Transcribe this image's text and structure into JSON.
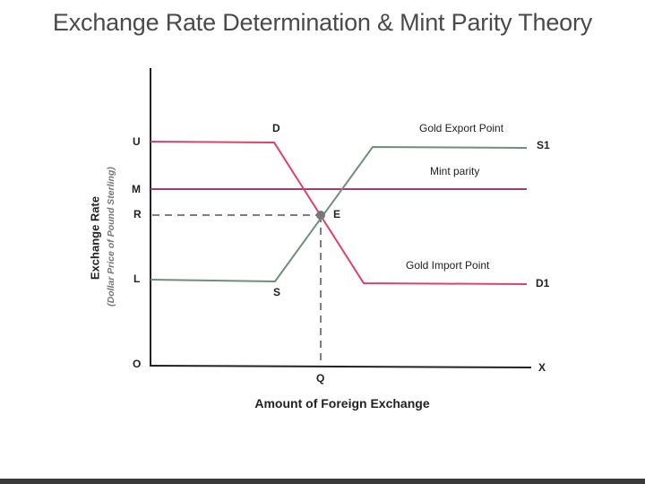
{
  "title": "Exchange Rate Determination & Mint Parity Theory",
  "axes": {
    "ylabel": "Exchange Rate",
    "ysublabel": "(Dollar Price of Pound Sterling)",
    "xlabel": "Amount of Foreign Exchange"
  },
  "point_labels": {
    "U": "U",
    "M": "M",
    "R": "R",
    "L": "L",
    "O": "O",
    "X": "X",
    "Q": "Q",
    "D": "D",
    "S": "S",
    "E": "E",
    "S1": "S1",
    "D1": "D1"
  },
  "annotations": {
    "gold_export": "Gold Export Point",
    "mint_parity": "Mint parity",
    "gold_import": "Gold Import Point"
  },
  "colors": {
    "demand": "#e0406a",
    "supply": "#6f8f7c",
    "mint": "#a0406a",
    "axis": "#222222",
    "equilibrium": "#777777"
  }
}
